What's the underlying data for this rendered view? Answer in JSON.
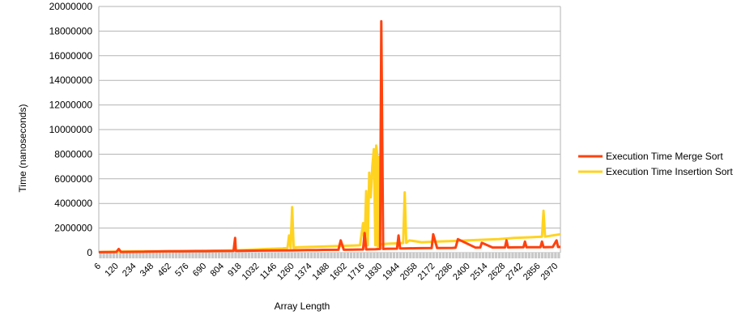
{
  "chart_data": {
    "type": "line",
    "title": "",
    "xlabel": "Array Length",
    "ylabel": "Time (nanoseconds)",
    "ylim": [
      0,
      20000000
    ],
    "yticks": [
      0,
      2000000,
      4000000,
      6000000,
      8000000,
      10000000,
      12000000,
      14000000,
      16000000,
      18000000,
      20000000
    ],
    "xlim": [
      6,
      3000
    ],
    "xtick_labels": [
      6,
      120,
      234,
      348,
      462,
      576,
      690,
      804,
      918,
      1032,
      1146,
      1260,
      1374,
      1488,
      1602,
      1716,
      1830,
      1944,
      2058,
      2172,
      2286,
      2400,
      2514,
      2628,
      2742,
      2856,
      2970
    ],
    "grid": "horizontal",
    "legend_position": "right",
    "series": [
      {
        "name": "Execution Time Merge Sort",
        "color": "#ff420e",
        "x": [
          6,
          60,
          120,
          135,
          150,
          250,
          300,
          330,
          380,
          460,
          530,
          640,
          760,
          880,
          890,
          895,
          905,
          960,
          1060,
          1160,
          1260,
          1290,
          1360,
          1420,
          1460,
          1560,
          1575,
          1595,
          1650,
          1720,
          1730,
          1740,
          1760,
          1800,
          1830,
          1838,
          1850,
          1860,
          1880,
          1940,
          1950,
          1960,
          1990,
          2060,
          2100,
          2165,
          2175,
          2200,
          2300,
          2320,
          2335,
          2450,
          2480,
          2490,
          2560,
          2640,
          2650,
          2660,
          2760,
          2770,
          2780,
          2870,
          2880,
          2890,
          2950,
          2975,
          2985,
          3000
        ],
        "y": [
          40000,
          50000,
          60000,
          300000,
          60000,
          70000,
          80000,
          90000,
          100000,
          110000,
          120000,
          130000,
          140000,
          150000,
          1200000,
          150000,
          150000,
          160000,
          170000,
          180000,
          190000,
          200000,
          210000,
          220000,
          230000,
          240000,
          1000000,
          240000,
          250000,
          260000,
          1600000,
          260000,
          270000,
          280000,
          300000,
          18800000,
          300000,
          310000,
          320000,
          330000,
          1400000,
          340000,
          350000,
          360000,
          370000,
          380000,
          1500000,
          380000,
          390000,
          400000,
          1100000,
          410000,
          420000,
          800000,
          420000,
          430000,
          1000000,
          430000,
          440000,
          900000,
          440000,
          450000,
          900000,
          450000,
          460000,
          1000000,
          460000,
          470000
        ]
      },
      {
        "name": "Execution Time Insertion Sort",
        "color": "#ffd320",
        "x": [
          6,
          100,
          200,
          300,
          400,
          500,
          600,
          700,
          800,
          900,
          1000,
          1100,
          1200,
          1230,
          1240,
          1250,
          1260,
          1270,
          1280,
          1300,
          1400,
          1500,
          1600,
          1650,
          1700,
          1720,
          1730,
          1740,
          1750,
          1760,
          1770,
          1780,
          1790,
          1800,
          1805,
          1810,
          1815,
          1820,
          1825,
          1830,
          1835,
          1840,
          1850,
          1860,
          1900,
          1950,
          1980,
          1990,
          2000,
          2020,
          2100,
          2200,
          2300,
          2400,
          2500,
          2600,
          2700,
          2800,
          2880,
          2890,
          2900,
          3000
        ],
        "y": [
          50000,
          80000,
          100000,
          110000,
          120000,
          130000,
          140000,
          150000,
          170000,
          200000,
          250000,
          300000,
          350000,
          400000,
          1400000,
          400000,
          3700000,
          400000,
          420000,
          450000,
          480000,
          520000,
          560000,
          580000,
          600000,
          2400000,
          600000,
          5000000,
          600000,
          6500000,
          4500000,
          7000000,
          8400000,
          600000,
          8700000,
          8200000,
          500000,
          7800000,
          600000,
          700000,
          650000,
          700000,
          650000,
          720000,
          740000,
          760000,
          780000,
          4900000,
          800000,
          1000000,
          850000,
          900000,
          950000,
          1000000,
          1050000,
          1100000,
          1200000,
          1250000,
          1300000,
          3400000,
          1300000,
          1500000
        ]
      }
    ]
  }
}
